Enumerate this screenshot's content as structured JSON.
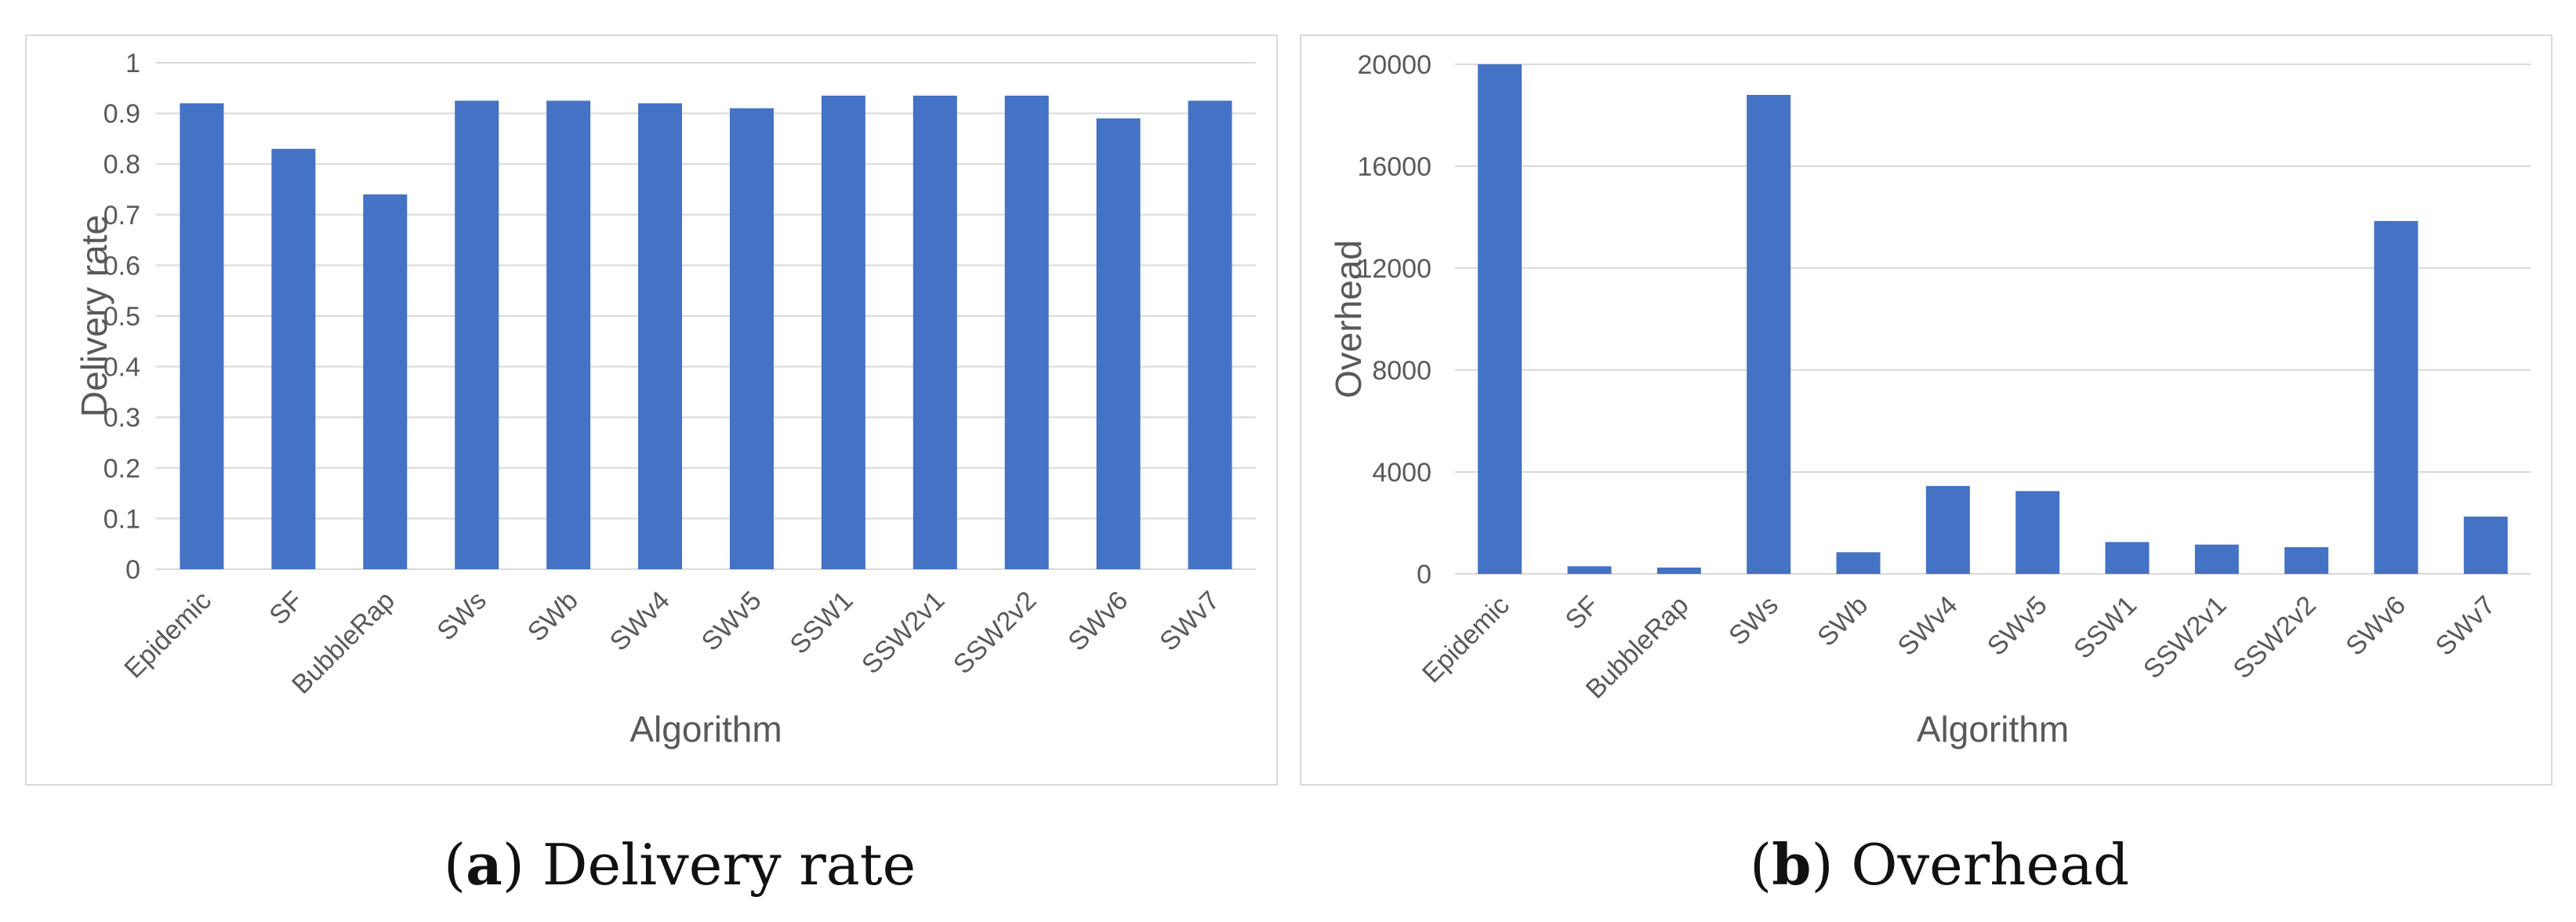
{
  "colors": {
    "bar": "#4472c4",
    "grid": "#d9d9d9",
    "tick_text": "#595959",
    "axis_title": "#595959",
    "baseline": "#d9d9d9"
  },
  "captions": {
    "a": {
      "open": "(",
      "letter": "a",
      "close": ")",
      "text": " Delivery rate"
    },
    "b": {
      "open": "(",
      "letter": "b",
      "close": ")",
      "text": " Overhead"
    }
  },
  "chart_data": [
    {
      "type": "bar",
      "title": "",
      "xlabel": "Algorithm",
      "ylabel": "Delivery rate",
      "ylim": [
        0,
        1
      ],
      "yticks": [
        "0",
        "0.1",
        "0.2",
        "0.3",
        "0.4",
        "0.5",
        "0.6",
        "0.7",
        "0.8",
        "0.9",
        "1"
      ],
      "ytick_values": [
        0,
        0.1,
        0.2,
        0.3,
        0.4,
        0.5,
        0.6,
        0.7,
        0.8,
        0.9,
        1
      ],
      "grid": true,
      "categories": [
        "Epidemic",
        "SF",
        "BubbleRap",
        "SWs",
        "SWb",
        "SWv4",
        "SWv5",
        "SSW1",
        "SSW2v1",
        "SSW2v2",
        "SWv6",
        "SWv7"
      ],
      "values": [
        0.92,
        0.83,
        0.74,
        0.925,
        0.925,
        0.92,
        0.91,
        0.935,
        0.935,
        0.935,
        0.89,
        0.925
      ]
    },
    {
      "type": "bar",
      "title": "",
      "xlabel": "Algorithm",
      "ylabel": "Overhead",
      "ylim": [
        0,
        20000
      ],
      "yticks": [
        "0",
        "4000",
        "8000",
        "12000",
        "16000",
        "20000"
      ],
      "ytick_values": [
        0,
        4000,
        8000,
        12000,
        16000,
        20000
      ],
      "grid": true,
      "categories": [
        "Epidemic",
        "SF",
        "BubbleRap",
        "SWs",
        "SWb",
        "SWv4",
        "SWv5",
        "SSW1",
        "SSW2v1",
        "SSW2v2",
        "SWv6",
        "SWv7"
      ],
      "values": [
        20000,
        300,
        250,
        18800,
        850,
        3450,
        3250,
        1250,
        1150,
        1050,
        13850,
        2250
      ]
    }
  ]
}
